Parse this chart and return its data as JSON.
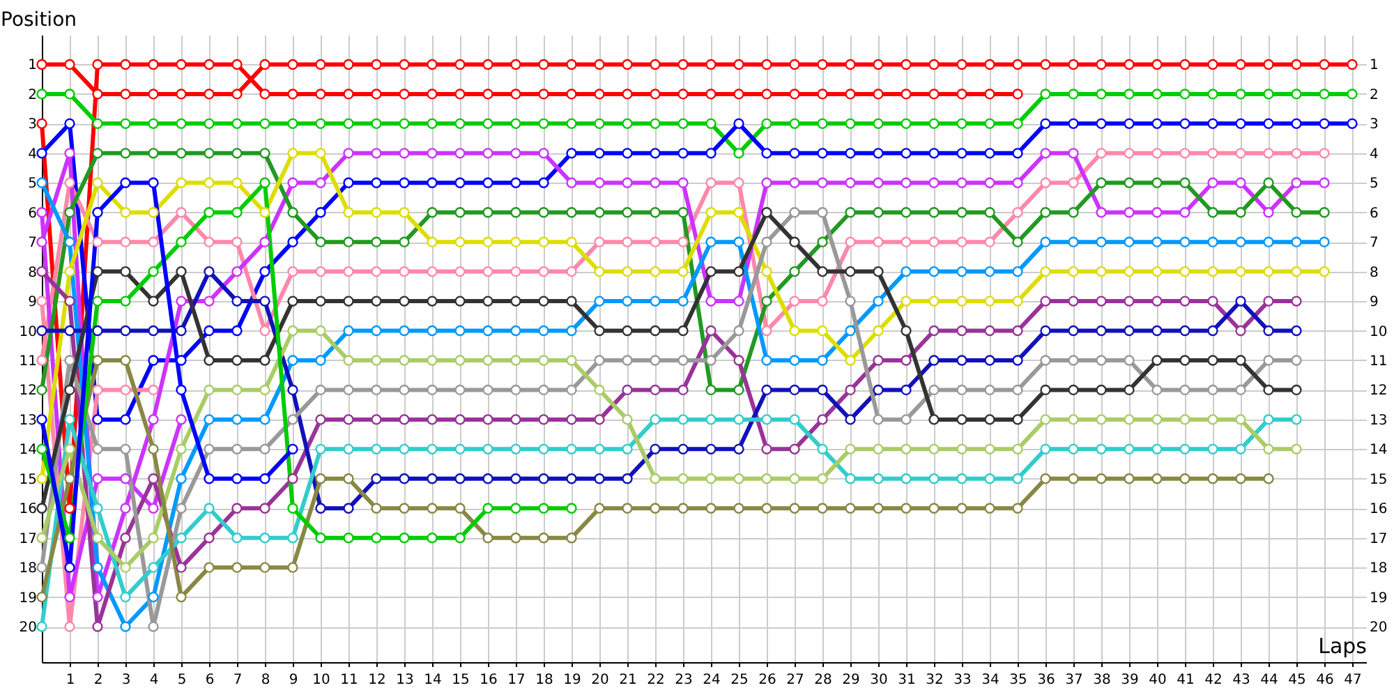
{
  "chart_data": {
    "type": "line",
    "xlabel": "Laps",
    "ylabel": "Position",
    "x": [
      0,
      1,
      2,
      3,
      4,
      5,
      6,
      7,
      8,
      9,
      10,
      11,
      12,
      13,
      14,
      15,
      16,
      17,
      18,
      19,
      20,
      21,
      22,
      23,
      24,
      25,
      26,
      27,
      28,
      29,
      30,
      31,
      32,
      33,
      34,
      35,
      36,
      37,
      38,
      39,
      40,
      41,
      42,
      43,
      44,
      45,
      46,
      47
    ],
    "xlim": [
      0,
      47.5
    ],
    "xticks": [
      1,
      2,
      3,
      4,
      5,
      6,
      7,
      8,
      9,
      10,
      11,
      12,
      13,
      14,
      15,
      16,
      17,
      18,
      19,
      20,
      21,
      22,
      23,
      24,
      25,
      26,
      27,
      28,
      29,
      30,
      31,
      32,
      33,
      34,
      35,
      36,
      37,
      38,
      39,
      40,
      41,
      42,
      43,
      44,
      45,
      46,
      47
    ],
    "ylim": [
      21.2,
      0
    ],
    "yticks": [
      1,
      2,
      3,
      4,
      5,
      6,
      7,
      8,
      9,
      10,
      11,
      12,
      13,
      14,
      15,
      16,
      17,
      18,
      19,
      20
    ],
    "y2lim": [
      21.2,
      0
    ],
    "y2ticks": [
      1,
      2,
      3,
      4,
      5,
      6,
      7,
      8,
      9,
      10,
      11,
      12,
      13,
      14,
      15,
      16,
      17,
      18,
      19,
      20
    ],
    "grid": true,
    "legend": false,
    "marker": "circle",
    "line_style": "solid",
    "series": [
      {
        "color": "#ff0000",
        "values": [
          1,
          1,
          2,
          2,
          2,
          2,
          2,
          2,
          1,
          1,
          1,
          1,
          1,
          1,
          1,
          1,
          1,
          1,
          1,
          1,
          1,
          1,
          1,
          1,
          1,
          1,
          1,
          1,
          1,
          1,
          1,
          1,
          1,
          1,
          1,
          1,
          1,
          1,
          1,
          1,
          1,
          1,
          1,
          1,
          1,
          1,
          1,
          1
        ]
      },
      {
        "color": "#ff0000",
        "values": [
          3,
          16,
          1,
          1,
          1,
          1,
          1,
          1,
          2,
          2,
          2,
          2,
          2,
          2,
          2,
          2,
          2,
          2,
          2,
          2,
          2,
          2,
          2,
          2,
          2,
          2,
          2,
          2,
          2,
          2,
          2,
          2,
          2,
          2,
          2,
          2,
          null,
          null,
          null,
          null,
          null,
          null,
          null,
          null,
          null,
          null,
          null,
          null
        ]
      },
      {
        "color": "#00cc00",
        "values": [
          2,
          2,
          3,
          3,
          3,
          3,
          3,
          3,
          3,
          3,
          3,
          3,
          3,
          3,
          3,
          3,
          3,
          3,
          3,
          3,
          3,
          3,
          3,
          3,
          3,
          4,
          3,
          3,
          3,
          3,
          3,
          3,
          3,
          3,
          3,
          3,
          2,
          2,
          2,
          2,
          2,
          2,
          2,
          2,
          2,
          2,
          2,
          2
        ]
      },
      {
        "color": "#0000ff",
        "values": [
          4,
          3,
          13,
          13,
          11,
          11,
          10,
          10,
          8,
          7,
          6,
          5,
          5,
          5,
          5,
          5,
          5,
          5,
          5,
          4,
          4,
          4,
          4,
          4,
          4,
          3,
          4,
          4,
          4,
          4,
          4,
          4,
          4,
          4,
          4,
          4,
          3,
          3,
          3,
          3,
          3,
          3,
          3,
          3,
          3,
          3,
          3,
          3
        ]
      },
      {
        "color": "#ff88aa",
        "values": [
          11,
          5,
          7,
          7,
          7,
          6,
          7,
          7,
          10,
          8,
          8,
          8,
          8,
          8,
          8,
          8,
          8,
          8,
          8,
          8,
          7,
          7,
          7,
          7,
          5,
          5,
          10,
          9,
          9,
          7,
          7,
          7,
          7,
          7,
          7,
          6,
          5,
          5,
          4,
          4,
          4,
          4,
          4,
          4,
          4,
          4,
          4,
          null
        ]
      },
      {
        "color": "#ff88aa",
        "values": [
          9,
          20,
          12,
          12,
          12,
          null,
          null,
          null,
          null,
          null,
          null,
          null,
          null,
          null,
          null,
          null,
          null,
          null,
          null,
          null,
          null,
          null,
          null,
          null,
          null,
          null,
          null,
          null,
          null,
          null,
          null,
          null,
          null,
          null,
          null,
          null,
          null,
          null,
          null,
          null,
          null,
          null,
          null,
          null,
          null,
          null,
          null,
          null
        ]
      },
      {
        "color": "#cc33ff",
        "values": [
          7,
          4,
          19,
          16,
          13,
          9,
          9,
          8,
          7,
          5,
          5,
          4,
          4,
          4,
          4,
          4,
          4,
          4,
          4,
          5,
          5,
          5,
          5,
          5,
          9,
          9,
          5,
          5,
          5,
          5,
          5,
          5,
          5,
          5,
          5,
          5,
          4,
          4,
          6,
          6,
          6,
          6,
          5,
          5,
          6,
          5,
          5,
          null
        ]
      },
      {
        "color": "#cc33ff",
        "values": [
          6,
          19,
          15,
          15,
          16,
          13,
          null,
          null,
          null,
          null,
          null,
          null,
          null,
          null,
          null,
          null,
          null,
          null,
          null,
          null,
          null,
          null,
          null,
          null,
          null,
          null,
          null,
          null,
          null,
          null,
          null,
          null,
          null,
          null,
          null,
          null,
          null,
          null,
          null,
          null,
          null,
          null,
          null,
          null,
          null,
          null,
          null,
          null
        ]
      },
      {
        "color": "#229922",
        "values": [
          12,
          6,
          4,
          4,
          4,
          4,
          4,
          4,
          4,
          6,
          7,
          7,
          7,
          7,
          6,
          6,
          6,
          6,
          6,
          6,
          6,
          6,
          6,
          6,
          12,
          12,
          9,
          8,
          7,
          6,
          6,
          6,
          6,
          6,
          6,
          7,
          6,
          6,
          5,
          5,
          5,
          5,
          6,
          6,
          5,
          6,
          6,
          null
        ]
      },
      {
        "color": "#0099ff",
        "values": [
          5,
          7,
          18,
          20,
          19,
          15,
          13,
          13,
          13,
          11,
          11,
          10,
          10,
          10,
          10,
          10,
          10,
          10,
          10,
          10,
          9,
          9,
          9,
          9,
          7,
          7,
          11,
          11,
          11,
          10,
          9,
          8,
          8,
          8,
          8,
          8,
          7,
          7,
          7,
          7,
          7,
          7,
          7,
          7,
          7,
          7,
          7,
          null
        ]
      },
      {
        "color": "#dddd00",
        "values": [
          15,
          8,
          5,
          6,
          6,
          5,
          5,
          5,
          6,
          4,
          4,
          6,
          6,
          6,
          7,
          7,
          7,
          7,
          7,
          7,
          8,
          8,
          8,
          8,
          6,
          6,
          8,
          10,
          10,
          11,
          10,
          9,
          9,
          9,
          9,
          9,
          8,
          8,
          8,
          8,
          8,
          8,
          8,
          8,
          8,
          8,
          8,
          null
        ]
      },
      {
        "color": "#993399",
        "values": [
          8,
          9,
          20,
          17,
          15,
          18,
          17,
          16,
          16,
          15,
          13,
          13,
          13,
          13,
          13,
          13,
          13,
          13,
          13,
          13,
          13,
          12,
          12,
          12,
          10,
          11,
          14,
          14,
          13,
          12,
          11,
          11,
          10,
          10,
          10,
          10,
          9,
          9,
          9,
          9,
          9,
          9,
          9,
          10,
          9,
          9,
          null,
          null
        ]
      },
      {
        "color": "#1111bb",
        "values": [
          10,
          10,
          10,
          10,
          10,
          10,
          8,
          9,
          9,
          12,
          16,
          16,
          15,
          15,
          15,
          15,
          15,
          15,
          15,
          15,
          15,
          15,
          14,
          14,
          14,
          14,
          12,
          12,
          12,
          13,
          12,
          12,
          11,
          11,
          11,
          11,
          10,
          10,
          10,
          10,
          10,
          10,
          10,
          9,
          10,
          10,
          null,
          null
        ]
      },
      {
        "color": "#999999",
        "values": [
          18,
          11,
          14,
          14,
          20,
          16,
          14,
          14,
          14,
          13,
          12,
          12,
          12,
          12,
          12,
          12,
          12,
          12,
          12,
          12,
          11,
          11,
          11,
          11,
          11,
          10,
          7,
          6,
          6,
          9,
          13,
          13,
          12,
          12,
          12,
          12,
          11,
          11,
          11,
          11,
          12,
          12,
          12,
          12,
          11,
          11,
          null,
          null
        ]
      },
      {
        "color": "#333333",
        "values": [
          16,
          12,
          8,
          8,
          9,
          8,
          11,
          11,
          11,
          9,
          9,
          9,
          9,
          9,
          9,
          9,
          9,
          9,
          9,
          9,
          10,
          10,
          10,
          10,
          8,
          8,
          6,
          7,
          8,
          8,
          8,
          10,
          13,
          13,
          13,
          13,
          12,
          12,
          12,
          12,
          11,
          11,
          11,
          11,
          12,
          12,
          null,
          null
        ]
      },
      {
        "color": "#33cccc",
        "values": [
          20,
          13,
          16,
          19,
          18,
          17,
          16,
          17,
          17,
          17,
          14,
          14,
          14,
          14,
          14,
          14,
          14,
          14,
          14,
          14,
          14,
          14,
          13,
          13,
          13,
          13,
          13,
          13,
          14,
          15,
          15,
          15,
          15,
          15,
          15,
          15,
          14,
          14,
          14,
          14,
          14,
          14,
          14,
          14,
          13,
          13,
          null,
          null
        ]
      },
      {
        "color": "#aacc66",
        "values": [
          17,
          14,
          17,
          18,
          17,
          14,
          12,
          12,
          12,
          10,
          10,
          11,
          11,
          11,
          11,
          11,
          11,
          11,
          11,
          11,
          12,
          13,
          15,
          15,
          15,
          15,
          15,
          15,
          15,
          14,
          14,
          14,
          14,
          14,
          14,
          14,
          13,
          13,
          13,
          13,
          13,
          13,
          13,
          13,
          14,
          14,
          null,
          null
        ]
      },
      {
        "color": "#888844",
        "values": [
          19,
          15,
          11,
          11,
          14,
          19,
          18,
          18,
          18,
          18,
          15,
          15,
          16,
          16,
          16,
          16,
          17,
          17,
          17,
          17,
          16,
          16,
          16,
          16,
          16,
          16,
          16,
          16,
          16,
          16,
          16,
          16,
          16,
          16,
          16,
          16,
          15,
          15,
          15,
          15,
          15,
          15,
          15,
          15,
          15,
          null,
          null,
          null
        ]
      },
      {
        "color": "#00cc00",
        "values": [
          14,
          17,
          9,
          9,
          8,
          7,
          6,
          6,
          5,
          16,
          17,
          17,
          17,
          17,
          17,
          17,
          16,
          16,
          16,
          16,
          null,
          null,
          null,
          null,
          null,
          null,
          null,
          null,
          null,
          null,
          null,
          null,
          null,
          null,
          null,
          null,
          null,
          null,
          null,
          null,
          null,
          null,
          null,
          null,
          null,
          null,
          null,
          null
        ]
      },
      {
        "color": "#0000ff",
        "values": [
          13,
          18,
          6,
          5,
          5,
          12,
          15,
          15,
          15,
          14,
          null,
          null,
          null,
          null,
          null,
          null,
          null,
          null,
          null,
          null,
          null,
          null,
          null,
          null,
          null,
          null,
          null,
          null,
          null,
          null,
          null,
          null,
          null,
          null,
          null,
          null,
          null,
          null,
          null,
          null,
          null,
          null,
          null,
          null,
          null,
          null,
          null,
          null
        ]
      }
    ]
  }
}
